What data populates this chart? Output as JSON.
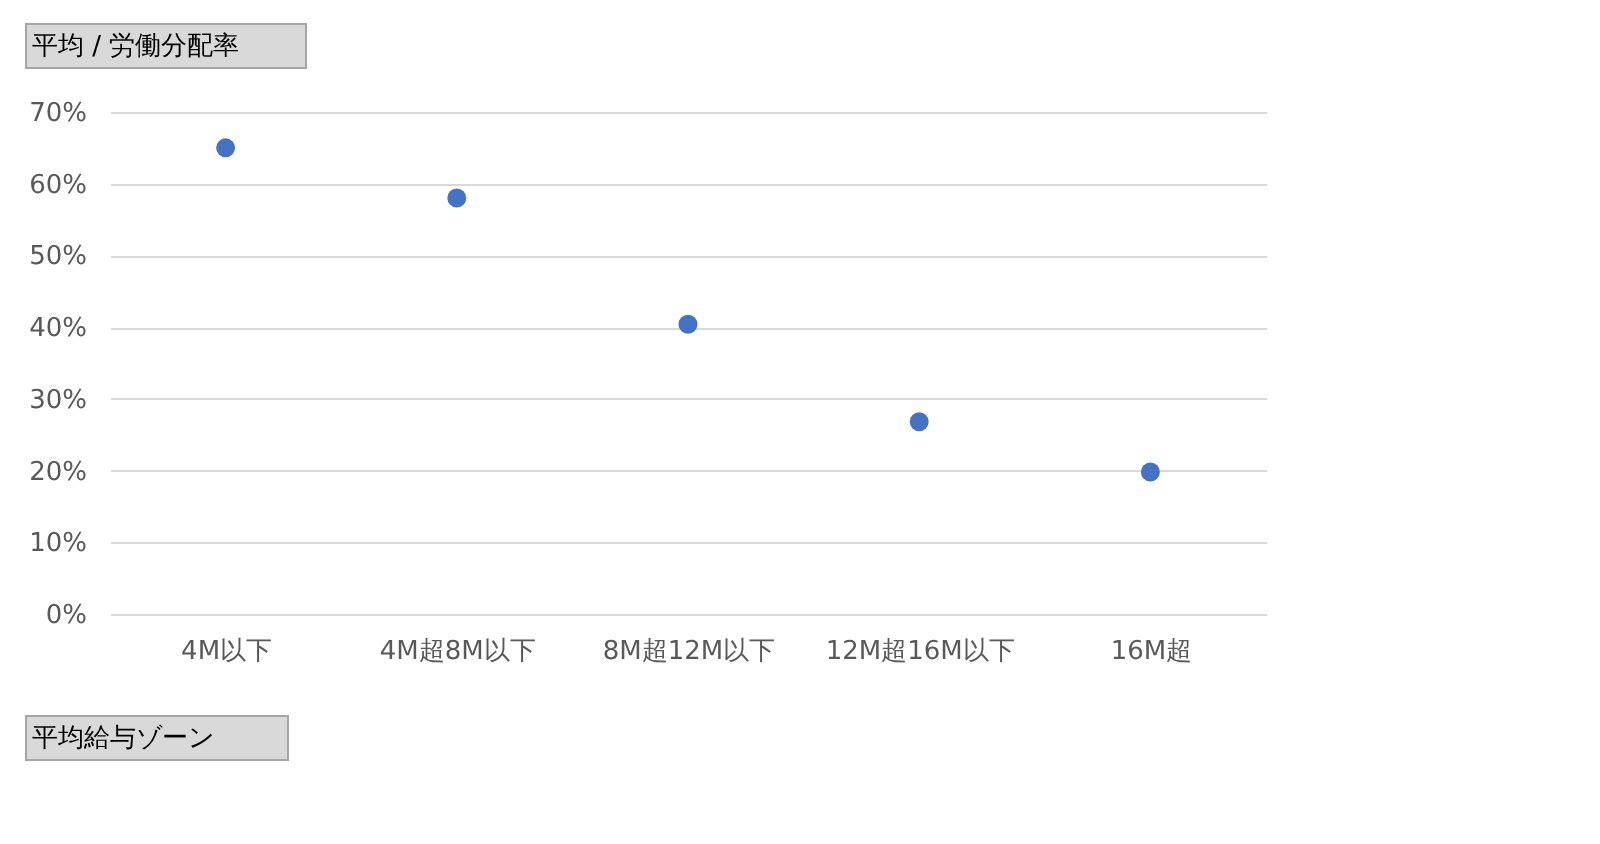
{
  "chart_data": {
    "type": "scatter",
    "title": "平均 / 労働分配率",
    "xlabel": "平均給与ゾーン",
    "categories": [
      "4M以下",
      "4M超8M以下",
      "8M超12M以下",
      "12M超16M以下",
      "16M超"
    ],
    "series": [
      {
        "color": "#4472c4",
        "values": [
          65,
          58,
          40.4,
          26.8,
          19.8
        ]
      }
    ],
    "ylim": [
      0,
      70
    ],
    "yticks": [
      {
        "value": 0,
        "label": "0%"
      },
      {
        "value": 10,
        "label": "10%"
      },
      {
        "value": 20,
        "label": "20%"
      },
      {
        "value": 30,
        "label": "30%"
      },
      {
        "value": 40,
        "label": "40%"
      },
      {
        "value": 50,
        "label": "50%"
      },
      {
        "value": 60,
        "label": "60%"
      },
      {
        "value": 70,
        "label": "70%"
      }
    ],
    "grid": "y",
    "marker": "circle",
    "legend": false
  }
}
